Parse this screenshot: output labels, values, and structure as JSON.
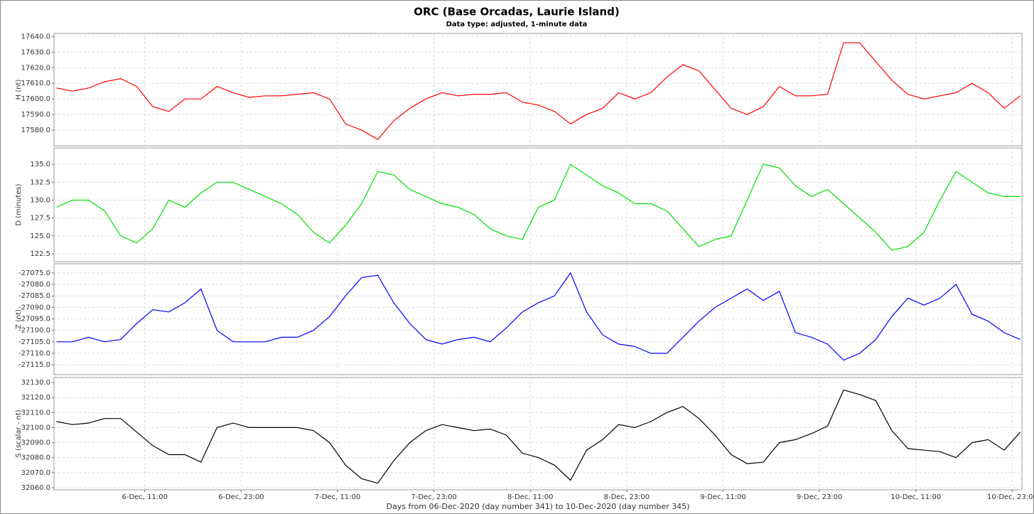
{
  "chart_data": [
    {
      "type": "line",
      "title": "ORC (Base Orcadas, Laurie Island)",
      "subtitle": "Data type: adjusted, 1-minute data",
      "ylabel": "H (nt)",
      "color": "#ff0000",
      "grid": true,
      "x": [
        0,
        2,
        4,
        6,
        8,
        10,
        12,
        14,
        16,
        18,
        20,
        22,
        24,
        26,
        28,
        30,
        32,
        34,
        36,
        38,
        40,
        42,
        44,
        46,
        48,
        50,
        52,
        54,
        56,
        58,
        60,
        62,
        64,
        66,
        68,
        70,
        72,
        74,
        76,
        78,
        80,
        82,
        84,
        86,
        88,
        90,
        92,
        94,
        96,
        98,
        100,
        102,
        104,
        106,
        108,
        110,
        112,
        114,
        116,
        118,
        120
      ],
      "values": [
        17607,
        17605,
        17607,
        17611,
        17613,
        17608,
        17595,
        17592,
        17600,
        17600,
        17608,
        17604,
        17601,
        17602,
        17602,
        17603,
        17604,
        17600,
        17584,
        17580,
        17574,
        17586,
        17594,
        17600,
        17604,
        17602,
        17603,
        17603,
        17604,
        17598,
        17596,
        17592,
        17584,
        17590,
        17594,
        17604,
        17600,
        17604,
        17614,
        17622,
        17618,
        17606,
        17594,
        17590,
        17595,
        17608,
        17602,
        17602,
        17603,
        17636,
        17636,
        17624,
        17612,
        17603,
        17600,
        17602,
        17604,
        17610,
        17604,
        17594,
        17602
      ],
      "xlim": [
        -0.3,
        120.2
      ],
      "ylim": [
        17570,
        17642
      ],
      "yticks": [
        {
          "value": 17580,
          "label": "17580.0"
        },
        {
          "value": 17590,
          "label": "17590.0"
        },
        {
          "value": 17600,
          "label": "17600.0"
        },
        {
          "value": 17610,
          "label": "17610.0"
        },
        {
          "value": 17620,
          "label": "17620.0"
        },
        {
          "value": 17630,
          "label": "17630.0"
        },
        {
          "value": 17640,
          "label": "17640.0"
        }
      ]
    },
    {
      "type": "line",
      "ylabel": "D (minutes)",
      "color": "#00e000",
      "grid": true,
      "x": [
        0,
        2,
        4,
        6,
        8,
        10,
        12,
        14,
        16,
        18,
        20,
        22,
        24,
        26,
        28,
        30,
        32,
        34,
        36,
        38,
        40,
        42,
        44,
        46,
        48,
        50,
        52,
        54,
        56,
        58,
        60,
        62,
        64,
        66,
        68,
        70,
        72,
        74,
        76,
        78,
        80,
        82,
        84,
        86,
        88,
        90,
        92,
        94,
        96,
        98,
        100,
        102,
        104,
        106,
        108,
        110,
        112,
        114,
        116,
        118,
        120
      ],
      "values": [
        129.0,
        130.0,
        130.0,
        128.5,
        125.0,
        124.0,
        126.0,
        130.0,
        129.0,
        131.0,
        132.5,
        132.5,
        131.5,
        130.5,
        129.5,
        128.0,
        125.5,
        124.0,
        126.5,
        129.5,
        134.0,
        133.5,
        131.5,
        130.5,
        129.5,
        129.0,
        128.0,
        126.0,
        125.0,
        124.5,
        129.0,
        130.0,
        135.0,
        133.5,
        132.0,
        131.0,
        129.5,
        129.5,
        128.5,
        126.0,
        123.5,
        124.5,
        125.0,
        130.0,
        135.0,
        134.5,
        132.0,
        130.5,
        131.5,
        129.5,
        127.5,
        125.5,
        123.0,
        123.5,
        125.5,
        130.0,
        134.0,
        132.5,
        131.0,
        130.5,
        130.5
      ],
      "xlim": [
        -0.3,
        120.2
      ],
      "ylim": [
        121.4,
        137.3
      ],
      "yticks": [
        {
          "value": 122.5,
          "label": "122.5"
        },
        {
          "value": 125,
          "label": "125.0"
        },
        {
          "value": 127.5,
          "label": "127.5"
        },
        {
          "value": 130,
          "label": "130.0"
        },
        {
          "value": 132.5,
          "label": "132.5"
        },
        {
          "value": 135,
          "label": "135.0"
        }
      ]
    },
    {
      "type": "line",
      "ylabel": "Z (nt)",
      "color": "#0000ff",
      "grid": true,
      "x": [
        0,
        2,
        4,
        6,
        8,
        10,
        12,
        14,
        16,
        18,
        20,
        22,
        24,
        26,
        28,
        30,
        32,
        34,
        36,
        38,
        40,
        42,
        44,
        46,
        48,
        50,
        52,
        54,
        56,
        58,
        60,
        62,
        64,
        66,
        68,
        70,
        72,
        74,
        76,
        78,
        80,
        82,
        84,
        86,
        88,
        90,
        92,
        94,
        96,
        98,
        100,
        102,
        104,
        106,
        108,
        110,
        112,
        114,
        116,
        118,
        120
      ],
      "values": [
        -27105,
        -27105,
        -27103,
        -27105,
        -27104,
        -27097,
        -27091,
        -27092,
        -27088,
        -27082,
        -27100,
        -27105,
        -27105,
        -27105,
        -27103,
        -27103,
        -27100,
        -27094,
        -27085,
        -27077,
        -27076,
        -27088,
        -27097,
        -27104,
        -27106,
        -27104,
        -27103,
        -27105,
        -27099,
        -27092,
        -27088,
        -27085,
        -27075,
        -27092,
        -27102,
        -27106,
        -27107,
        -27110,
        -27110,
        -27103,
        -27096,
        -27090,
        -27086,
        -27082,
        -27087,
        -27083,
        -27101,
        -27103,
        -27106,
        -27113,
        -27110,
        -27104,
        -27094,
        -27086,
        -27089,
        -27086,
        -27080,
        -27093,
        -27096,
        -27101,
        -27104
      ],
      "xlim": [
        -0.3,
        120.2
      ],
      "ylim": [
        -27119.3,
        -27071
      ],
      "yticks": [
        {
          "value": -27115,
          "label": "-27115.0"
        },
        {
          "value": -27110,
          "label": "-27110.0"
        },
        {
          "value": -27105,
          "label": "-27105.0"
        },
        {
          "value": -27100,
          "label": "-27100.0"
        },
        {
          "value": -27095,
          "label": "-27095.0"
        },
        {
          "value": -27090,
          "label": "-27090.0"
        },
        {
          "value": -27085,
          "label": "-27085.0"
        },
        {
          "value": -27080,
          "label": "-27080.0"
        },
        {
          "value": -27075,
          "label": "-27075.0"
        }
      ]
    },
    {
      "type": "line",
      "ylabel": "S (scalar - nt)",
      "xlabel": "Days from 06-Dec-2020 (day number 341) to 10-Dec-2020 (day number 345)",
      "color": "#000000",
      "grid": true,
      "x": [
        0,
        2,
        4,
        6,
        8,
        10,
        12,
        14,
        16,
        18,
        20,
        22,
        24,
        26,
        28,
        30,
        32,
        34,
        36,
        38,
        40,
        42,
        44,
        46,
        48,
        50,
        52,
        54,
        56,
        58,
        60,
        62,
        64,
        66,
        68,
        70,
        72,
        74,
        76,
        78,
        80,
        82,
        84,
        86,
        88,
        90,
        92,
        94,
        96,
        98,
        100,
        102,
        104,
        106,
        108,
        110,
        112,
        114,
        116,
        118,
        120
      ],
      "values": [
        32104,
        32102,
        32103,
        32106,
        32106,
        32097,
        32088,
        32082,
        32082,
        32077,
        32100,
        32103,
        32100,
        32100,
        32100,
        32100,
        32098,
        32090,
        32075,
        32066,
        32063,
        32078,
        32090,
        32098,
        32102,
        32100,
        32098,
        32099,
        32095,
        32083,
        32080,
        32075,
        32065,
        32085,
        32092,
        32102,
        32100,
        32104,
        32110,
        32114,
        32106,
        32095,
        32082,
        32076,
        32077,
        32090,
        32092,
        32096,
        32101,
        32125,
        32122,
        32118,
        32098,
        32086,
        32085,
        32084,
        32080,
        32090,
        32092,
        32085,
        32097
      ],
      "xlim": [
        -0.3,
        120.2
      ],
      "ylim": [
        32058.6,
        32133.3
      ],
      "yticks": [
        {
          "value": 32060,
          "label": "32060.0"
        },
        {
          "value": 32070,
          "label": "32070.0"
        },
        {
          "value": 32080,
          "label": "32080.0"
        },
        {
          "value": 32090,
          "label": "32090.0"
        },
        {
          "value": 32100,
          "label": "32100.0"
        },
        {
          "value": 32110,
          "label": "32110.0"
        },
        {
          "value": 32120,
          "label": "32120.0"
        },
        {
          "value": 32130,
          "label": "32130.0"
        }
      ],
      "xticks": [
        {
          "value": 11,
          "label": "6-Dec, 11:00"
        },
        {
          "value": 23,
          "label": "6-Dec, 23:00"
        },
        {
          "value": 35,
          "label": "7-Dec, 11:00"
        },
        {
          "value": 47,
          "label": "7-Dec, 23:00"
        },
        {
          "value": 59,
          "label": "8-Dec, 11:00"
        },
        {
          "value": 71,
          "label": "8-Dec, 23:00"
        },
        {
          "value": 83,
          "label": "9-Dec, 11:00"
        },
        {
          "value": 95,
          "label": "9-Dec, 23:00"
        },
        {
          "value": 107,
          "label": "10-Dec, 11:00"
        },
        {
          "value": 119,
          "label": "10-Dec, 23:00"
        }
      ]
    }
  ]
}
